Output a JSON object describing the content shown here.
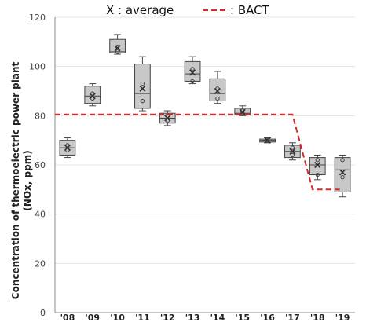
{
  "legend": {
    "average_text": "X : average",
    "bact_text": ": BACT"
  },
  "colors": {
    "box_fill": "#c8c8c8",
    "box_stroke": "#444444",
    "bact_line": "#d42a2a",
    "grid": "#e6e6e6",
    "axis": "#888888"
  },
  "chart_data": {
    "type": "box",
    "ylabel_line1": "Concentration of thermoelectric power plant",
    "ylabel_line2": "(NOx, ppm)",
    "xlabel": "",
    "ylim": [
      0,
      120
    ],
    "yticks": [
      0,
      20,
      40,
      60,
      80,
      100,
      120
    ],
    "grid": true,
    "categories": [
      "'08",
      "'09",
      "'10",
      "'11",
      "'12",
      "'13",
      "'14",
      "'15",
      "'16",
      "'17",
      "'18",
      "'19"
    ],
    "boxes": [
      {
        "min": 63,
        "q1": 64,
        "median": 67,
        "q3": 70,
        "max": 71,
        "mean": 67,
        "points": [
          66,
          68
        ]
      },
      {
        "min": 84,
        "q1": 85,
        "median": 88,
        "q3": 92,
        "max": 93,
        "mean": 88,
        "points": [
          87,
          89
        ]
      },
      {
        "min": 105,
        "q1": 105.5,
        "median": 106,
        "q3": 111,
        "max": 113,
        "mean": 107.5,
        "points": [
          106,
          108
        ]
      },
      {
        "min": 82,
        "q1": 83,
        "median": 89,
        "q3": 101,
        "max": 104,
        "mean": 91,
        "points": [
          86,
          93
        ]
      },
      {
        "min": 76,
        "q1": 77,
        "median": 79,
        "q3": 81,
        "max": 82,
        "mean": 79,
        "points": [
          78,
          80
        ]
      },
      {
        "min": 93,
        "q1": 94,
        "median": 97,
        "q3": 102,
        "max": 104,
        "mean": 97.5,
        "points": [
          94,
          99
        ]
      },
      {
        "min": 85,
        "q1": 86,
        "median": 89,
        "q3": 95,
        "max": 98,
        "mean": 90,
        "points": [
          87,
          91
        ]
      },
      {
        "min": 80,
        "q1": 80.5,
        "median": 81,
        "q3": 83,
        "max": 84,
        "mean": 81.5,
        "points": [
          81,
          82
        ]
      },
      {
        "min": 69,
        "q1": 69.3,
        "median": 70,
        "q3": 70.5,
        "max": 71,
        "mean": 70,
        "points": [
          70
        ]
      },
      {
        "min": 62,
        "q1": 63,
        "median": 65.5,
        "q3": 68,
        "max": 69,
        "mean": 65.5,
        "points": [
          64,
          67
        ]
      },
      {
        "min": 54,
        "q1": 56,
        "median": 60,
        "q3": 63,
        "max": 64,
        "mean": 60,
        "points": [
          56,
          62
        ]
      },
      {
        "min": 47,
        "q1": 49,
        "median": 58,
        "q3": 63,
        "max": 64,
        "mean": 57,
        "points": [
          55,
          62
        ]
      }
    ],
    "bact": {
      "name": "BACT",
      "style": "dashed",
      "points": [
        {
          "x": 0,
          "y": 80.5
        },
        {
          "x": 9.5,
          "y": 80.5
        },
        {
          "x": 10.3,
          "y": 50
        },
        {
          "x": 11.5,
          "y": 50
        }
      ]
    }
  }
}
